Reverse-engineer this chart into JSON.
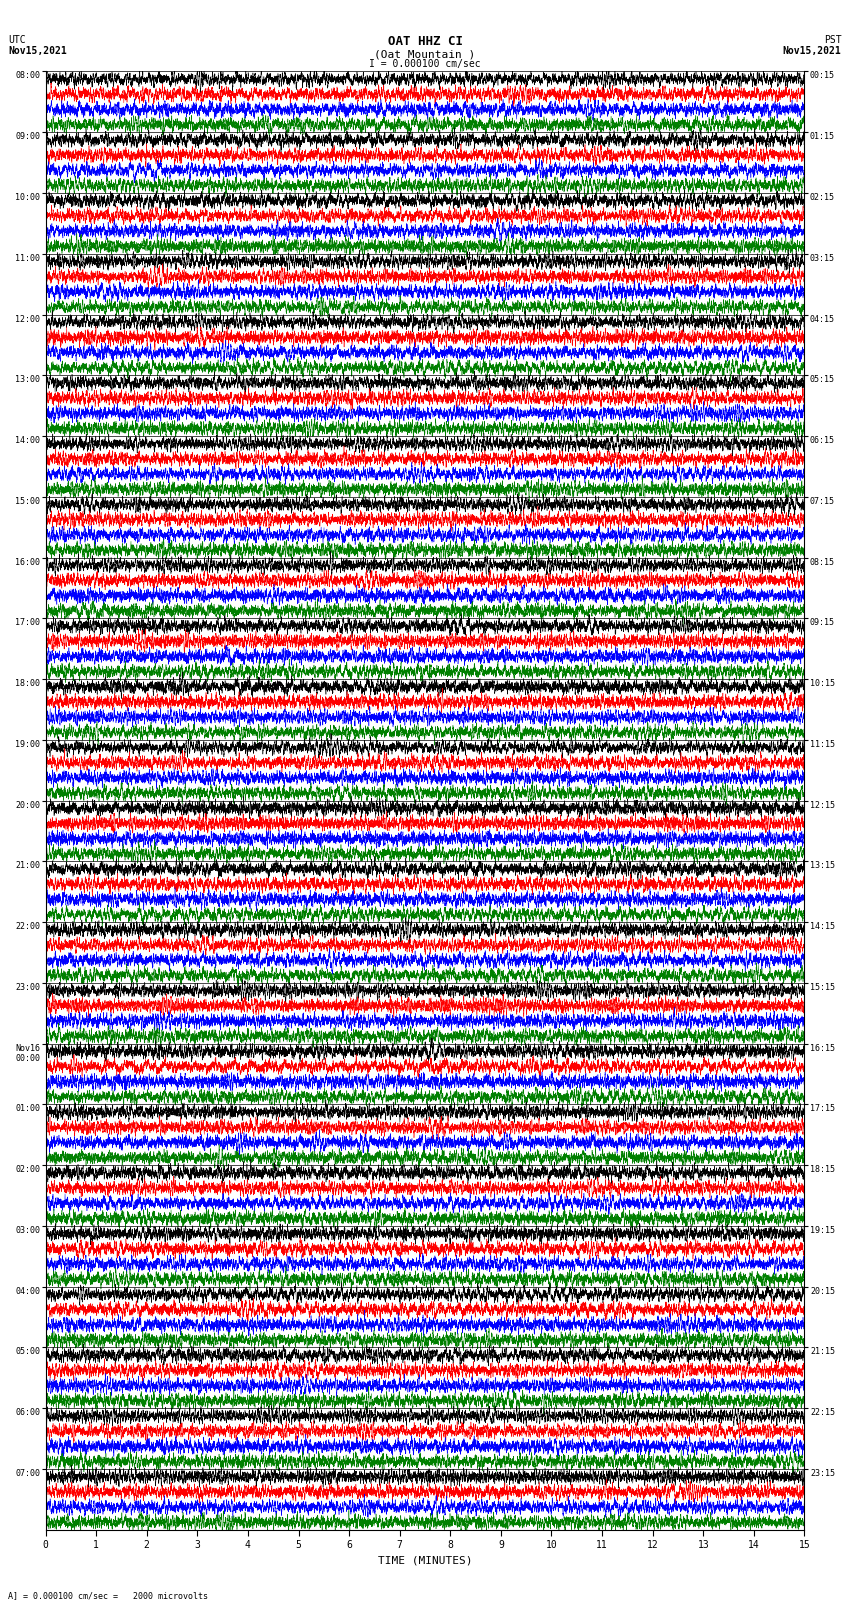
{
  "title_line1": "OAT HHZ CI",
  "title_line2": "(Oat Mountain )",
  "scale_label": "I = 0.000100 cm/sec",
  "left_header_line1": "UTC",
  "left_header_line2": "Nov15,2021",
  "right_header_line1": "PST",
  "right_header_line2": "Nov15,2021",
  "bottom_note": "A] = 0.000100 cm/sec =   2000 microvolts",
  "xlabel": "TIME (MINUTES)",
  "xlim": [
    0,
    15
  ],
  "trace_colors": [
    "black",
    "red",
    "blue",
    "green"
  ],
  "utc_times": [
    "08:00",
    "09:00",
    "10:00",
    "11:00",
    "12:00",
    "13:00",
    "14:00",
    "15:00",
    "16:00",
    "17:00",
    "18:00",
    "19:00",
    "20:00",
    "21:00",
    "22:00",
    "23:00",
    "Nov16\n00:00",
    "01:00",
    "02:00",
    "03:00",
    "04:00",
    "05:00",
    "06:00",
    "07:00"
  ],
  "pst_times": [
    "00:15",
    "01:15",
    "02:15",
    "03:15",
    "04:15",
    "05:15",
    "06:15",
    "07:15",
    "08:15",
    "09:15",
    "10:15",
    "11:15",
    "12:15",
    "13:15",
    "14:15",
    "15:15",
    "16:15",
    "17:15",
    "18:15",
    "19:15",
    "20:15",
    "21:15",
    "22:15",
    "23:15"
  ],
  "bg_color": "white",
  "n_hours": 24,
  "traces_per_hour": 4,
  "fig_width": 8.5,
  "fig_height": 16.13
}
